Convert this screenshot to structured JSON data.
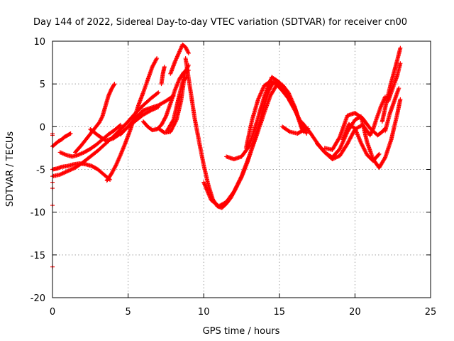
{
  "chart_data": {
    "type": "scatter",
    "title": "Day 144 of 2022, Sidereal Day-to-day VTEC variation (SDTVAR) for receiver cn00",
    "xlabel": "GPS time / hours",
    "ylabel": "SDTVAR / TECUs",
    "xlim": [
      0,
      25
    ],
    "ylim": [
      -20,
      10
    ],
    "x_ticks": [
      0,
      5,
      10,
      15,
      20,
      25
    ],
    "y_ticks": [
      -20,
      -15,
      -10,
      -5,
      0,
      5,
      10
    ],
    "x_tick_labels": [
      "0",
      "5",
      "10",
      "15",
      "20",
      "25"
    ],
    "y_tick_labels": [
      "-20",
      "-15",
      "-10",
      "-5",
      "0",
      "5",
      "10"
    ],
    "grid": true,
    "marker": "+",
    "color": "#ff0000",
    "series": [
      {
        "name": "s1",
        "x": [
          0.0,
          0.2,
          0.4,
          0.6,
          0.8,
          1.0,
          1.2
        ],
        "y": [
          -2.3,
          -2.0,
          -1.7,
          -1.5,
          -1.2,
          -1.0,
          -0.8
        ]
      },
      {
        "name": "s2",
        "x": [
          0.0,
          0.3,
          0.6,
          1.0,
          1.4,
          1.8,
          2.2,
          2.6,
          3.0,
          3.4,
          3.8
        ],
        "y": [
          -5.0,
          -4.9,
          -4.7,
          -4.6,
          -4.4,
          -4.3,
          -4.4,
          -4.6,
          -5.0,
          -5.6,
          -6.2
        ]
      },
      {
        "name": "s3",
        "x": [
          0.0,
          0.5,
          1.0,
          1.5,
          2.0,
          2.5,
          3.0,
          3.5,
          4.0,
          4.5,
          5.0,
          5.5,
          6.0,
          6.5,
          7.0
        ],
        "y": [
          -5.8,
          -5.6,
          -5.2,
          -4.8,
          -4.2,
          -3.5,
          -2.8,
          -2.0,
          -1.2,
          -0.3,
          0.6,
          1.6,
          2.5,
          3.3,
          4.0
        ]
      },
      {
        "name": "s4",
        "x": [
          0.5,
          0.9,
          1.3,
          1.7,
          2.1,
          2.5,
          2.9,
          3.3,
          3.7,
          4.1,
          4.5
        ],
        "y": [
          -3.0,
          -3.3,
          -3.5,
          -3.3,
          -3.0,
          -2.6,
          -2.1,
          -1.5,
          -0.9,
          -0.4,
          0.2
        ]
      },
      {
        "name": "s5",
        "x": [
          1.5,
          1.9,
          2.3,
          2.7,
          3.1,
          3.3,
          3.5,
          3.7,
          3.9,
          4.1
        ],
        "y": [
          -3.0,
          -2.2,
          -1.3,
          -0.4,
          0.5,
          1.2,
          2.4,
          3.6,
          4.4,
          5.0
        ]
      },
      {
        "name": "s6",
        "x": [
          3.6,
          3.9,
          4.2,
          4.5,
          4.8,
          5.1,
          5.4,
          5.7,
          6.0,
          6.3,
          6.6,
          6.9
        ],
        "y": [
          -6.3,
          -5.5,
          -4.5,
          -3.3,
          -2.0,
          -0.6,
          1.0,
          2.6,
          4.0,
          5.5,
          7.0,
          8.0
        ]
      },
      {
        "name": "s7",
        "x": [
          2.5,
          3.0,
          3.5,
          4.0,
          4.5,
          5.0,
          5.5,
          6.0,
          6.5,
          7.0,
          7.5,
          8.0
        ],
        "y": [
          -0.3,
          -1.0,
          -1.6,
          -1.4,
          -0.8,
          0.0,
          1.0,
          1.9,
          2.2,
          2.5,
          3.0,
          3.6
        ]
      },
      {
        "name": "s8",
        "x": [
          4.5,
          5.0,
          5.5,
          6.0,
          6.5,
          7.0
        ],
        "y": [
          -0.9,
          0.0,
          0.7,
          1.4,
          1.9,
          2.3
        ]
      },
      {
        "name": "s9",
        "x": [
          6.0,
          6.3,
          6.6,
          6.9,
          7.2,
          7.5,
          7.8,
          8.1,
          8.4,
          8.7,
          9.0
        ],
        "y": [
          0.6,
          0.0,
          -0.4,
          -0.3,
          0.2,
          1.2,
          2.7,
          4.3,
          5.6,
          6.4,
          6.6
        ]
      },
      {
        "name": "s10",
        "x": [
          7.0,
          7.4,
          7.8,
          8.2,
          8.5,
          8.7,
          8.9
        ],
        "y": [
          -0.2,
          -0.7,
          -0.6,
          0.8,
          3.0,
          5.5,
          5.8
        ]
      },
      {
        "name": "s11",
        "x": [
          7.8,
          8.1,
          8.4,
          8.6,
          8.8,
          9.0
        ],
        "y": [
          6.2,
          7.6,
          8.8,
          9.6,
          9.3,
          8.6
        ]
      },
      {
        "name": "s12",
        "x": [
          7.6,
          8.0,
          8.4,
          8.8,
          9.0
        ],
        "y": [
          -0.4,
          0.8,
          3.8,
          6.5,
          7.2
        ]
      },
      {
        "name": "s13",
        "x": [
          7.2,
          7.3,
          7.4
        ],
        "y": [
          5.0,
          6.2,
          7.0
        ]
      },
      {
        "name": "s14",
        "x": [
          8.8,
          9.1,
          9.4,
          9.7,
          10.0,
          10.3,
          10.6,
          10.9,
          11.2,
          11.5,
          11.8,
          12.1,
          12.5,
          12.9,
          13.3,
          13.7,
          14.0,
          14.3,
          14.6,
          15.0,
          15.4,
          15.7,
          16.0
        ],
        "y": [
          8.0,
          4.5,
          1.0,
          -1.8,
          -4.5,
          -6.8,
          -8.5,
          -9.3,
          -9.5,
          -9.0,
          -8.3,
          -7.3,
          -5.9,
          -4.1,
          -1.9,
          0.5,
          2.5,
          4.2,
          5.2,
          5.0,
          4.0,
          3.0,
          2.3
        ]
      },
      {
        "name": "s15",
        "x": [
          10.0,
          10.5,
          11.0,
          11.5,
          12.0,
          12.5,
          13.0,
          13.5,
          14.0,
          14.4,
          14.8,
          15.2,
          15.6,
          16.0,
          16.3,
          16.6
        ],
        "y": [
          -6.5,
          -8.6,
          -9.3,
          -8.8,
          -7.6,
          -5.8,
          -3.5,
          -1.0,
          1.6,
          3.6,
          4.8,
          4.9,
          4.0,
          2.4,
          0.8,
          -0.6
        ]
      },
      {
        "name": "s16",
        "x": [
          11.5,
          12.0,
          12.5,
          13.0,
          13.5,
          14.0,
          14.5,
          15.0,
          15.5,
          16.0,
          16.5
        ],
        "y": [
          -3.5,
          -3.8,
          -3.5,
          -2.3,
          0.5,
          3.5,
          5.8,
          5.2,
          3.8,
          2.3,
          -0.3
        ]
      },
      {
        "name": "s17",
        "x": [
          12.8,
          13.2,
          13.6,
          14.0,
          14.4,
          14.8,
          15.2,
          15.6,
          16.0,
          16.4,
          16.8
        ],
        "y": [
          -2.5,
          0.8,
          3.2,
          4.8,
          5.3,
          5.0,
          4.2,
          3.3,
          2.0,
          0.6,
          -0.8
        ]
      },
      {
        "name": "s18",
        "x": [
          15.2,
          15.7,
          16.2,
          16.6,
          16.9
        ],
        "y": [
          0.0,
          -0.6,
          -0.8,
          -0.4,
          -0.2
        ]
      },
      {
        "name": "s19",
        "x": [
          16.5,
          17.0,
          17.5,
          18.0,
          18.5,
          19.0,
          19.5,
          20.0,
          20.5,
          20.8,
          21.0,
          21.2,
          21.4,
          21.7,
          22.0
        ],
        "y": [
          0.5,
          -0.6,
          -1.9,
          -3.0,
          -3.8,
          -3.4,
          -2.0,
          -0.3,
          0.2,
          -0.5,
          -1.0,
          -0.3,
          0.8,
          2.3,
          3.5
        ]
      },
      {
        "name": "s20",
        "x": [
          17.5,
          18.0,
          18.5,
          19.0,
          19.5,
          20.0,
          20.4,
          20.8,
          21.2,
          21.6,
          22.0,
          22.4,
          22.8,
          23.0
        ],
        "y": [
          -2.0,
          -3.0,
          -3.6,
          -2.6,
          -0.6,
          0.8,
          1.2,
          -1.8,
          -3.8,
          -4.8,
          -3.6,
          -1.5,
          1.5,
          3.2
        ]
      },
      {
        "name": "s21",
        "x": [
          18.0,
          18.5,
          19.0,
          19.5,
          20.0,
          20.5,
          21.0,
          21.5,
          21.8,
          22.0
        ],
        "y": [
          -2.5,
          -2.7,
          -1.2,
          1.3,
          1.6,
          1.0,
          -0.2,
          -1.0,
          -0.6,
          -0.2
        ]
      },
      {
        "name": "s22",
        "x": [
          19.2,
          19.6,
          20.0,
          20.4,
          20.8,
          21.2,
          21.6
        ],
        "y": [
          -1.5,
          0.3,
          -0.2,
          -1.9,
          -3.3,
          -4.0,
          -3.2
        ]
      },
      {
        "name": "s23",
        "x": [
          21.8,
          22.0,
          22.2,
          22.4,
          22.6,
          22.8,
          23.0
        ],
        "y": [
          0.6,
          2.2,
          3.8,
          5.2,
          6.5,
          7.8,
          9.2
        ]
      },
      {
        "name": "s24",
        "x": [
          22.2,
          22.4,
          22.6,
          22.8,
          23.0
        ],
        "y": [
          3.0,
          4.0,
          5.0,
          6.0,
          7.4
        ]
      },
      {
        "name": "s25",
        "x": [
          22.0,
          22.3,
          22.6,
          22.9
        ],
        "y": [
          -0.5,
          1.5,
          3.0,
          4.5
        ]
      },
      {
        "name": "outliers",
        "x": [
          0.0,
          0.0,
          0.0,
          0.0,
          0.0,
          0.0
        ],
        "y": [
          -0.8,
          -6.5,
          -7.2,
          -9.2,
          -16.4,
          -1.0
        ]
      }
    ]
  }
}
